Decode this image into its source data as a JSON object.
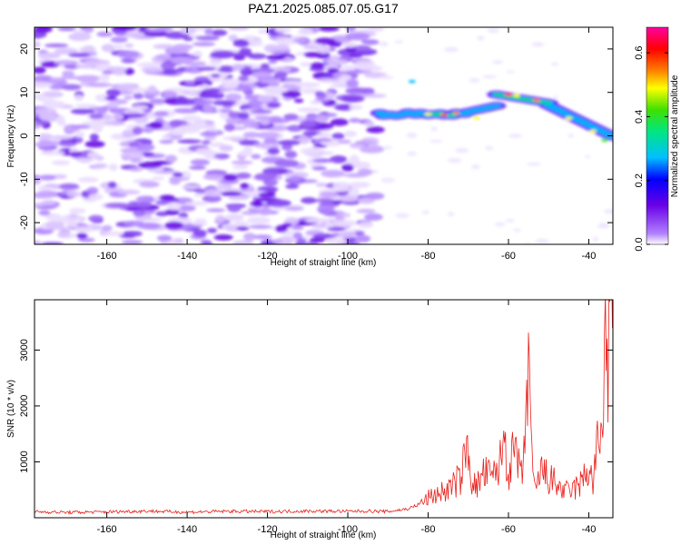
{
  "title": "PAZ1.2025.085.07.05.G17",
  "chart_data": [
    {
      "type": "heatmap",
      "xlabel": "Height of straight line (km)",
      "ylabel": "Frequency (Hz)",
      "xlim": [
        -178,
        -34
      ],
      "ylim": [
        -25,
        25
      ],
      "xticks": [
        -160,
        -140,
        -120,
        -100,
        -80,
        -60,
        -40
      ],
      "yticks": [
        -20,
        -10,
        0,
        10,
        20
      ],
      "colorbar": {
        "label": "Normalized spectral amplitude",
        "range": [
          0.0,
          0.68
        ],
        "ticks": [
          0.0,
          0.2,
          0.4,
          0.6
        ],
        "colormap": [
          "#ffffff",
          "#b080ff",
          "#7b00e6",
          "#0000ff",
          "#00c8ff",
          "#00e680",
          "#40e000",
          "#ffff00",
          "#ff8000",
          "#ff0000",
          "#ff00a0"
        ]
      },
      "features": [
        {
          "x_range": [
            -178,
            -93
          ],
          "freq_range": [
            -25,
            25
          ],
          "amplitude": "0.05-0.15",
          "kind": "noise"
        },
        {
          "x_range": [
            -92,
            -70
          ],
          "freq": 5,
          "amplitude": "0.3-0.65",
          "kind": "signal"
        },
        {
          "x_range": [
            -70,
            -62
          ],
          "freq": 6,
          "amplitude": "0.3-0.45",
          "kind": "signal"
        },
        {
          "x_range": [
            -63,
            -48
          ],
          "freq": 9,
          "amplitude": "0.3-0.65",
          "kind": "signal"
        },
        {
          "x_range": [
            -48,
            -34
          ],
          "freq_range": [
            0,
            5
          ],
          "amplitude": "0.2-0.5",
          "kind": "signal"
        },
        {
          "x_range": [
            -85,
            -80
          ],
          "freq": 12,
          "amplitude": "0.3",
          "kind": "signal"
        }
      ]
    },
    {
      "type": "line",
      "xlabel": "Height of straight line (km)",
      "ylabel": "SNR (10 * v/v)",
      "xlim": [
        -178,
        -34
      ],
      "ylim": [
        0,
        3900
      ],
      "xticks": [
        -160,
        -140,
        -120,
        -100,
        -80,
        -60,
        -40
      ],
      "yticks": [
        1000,
        2000,
        3000
      ],
      "color": "#e8201c",
      "series": [
        {
          "x": [
            -178,
            -170,
            -160,
            -150,
            -140,
            -130,
            -120,
            -110,
            -100,
            -95,
            -90,
            -85,
            -82,
            -80,
            -78,
            -75,
            -72,
            -70,
            -69,
            -68,
            -66,
            -64,
            -62,
            -61,
            -60,
            -59,
            -58,
            -57,
            -56,
            -55,
            -54,
            -53,
            -52,
            -50,
            -48,
            -46,
            -44,
            -42,
            -40,
            -39,
            -38,
            -37,
            -36,
            -35,
            -34
          ],
          "values": [
            110,
            95,
            105,
            120,
            100,
            115,
            110,
            120,
            115,
            120,
            110,
            160,
            250,
            350,
            420,
            500,
            700,
            1310,
            600,
            550,
            800,
            700,
            1000,
            1490,
            800,
            1060,
            1200,
            650,
            1100,
            3150,
            600,
            500,
            850,
            700,
            600,
            450,
            500,
            600,
            900,
            600,
            1200,
            1400,
            3000,
            2800,
            3800
          ]
        }
      ]
    }
  ]
}
